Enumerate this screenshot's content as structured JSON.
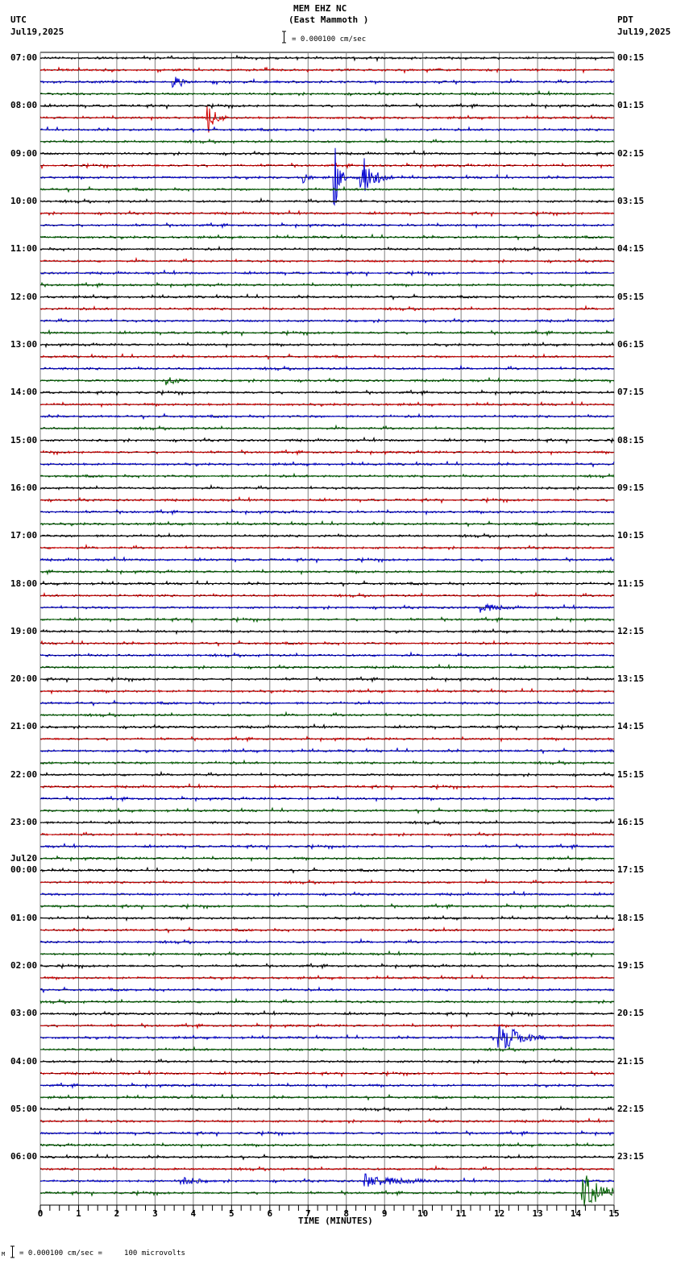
{
  "header": {
    "station": "MEM EHZ NC",
    "location": "(East Mammoth )",
    "scale_text": "= 0.000100 cm/sec",
    "left_tz": "UTC",
    "left_date": "Jul19,2025",
    "right_tz": "PDT",
    "right_date": "Jul19,2025"
  },
  "footer": {
    "scale_text": "= 0.000100 cm/sec =     100 microvolts",
    "x_axis_title": "TIME (MINUTES)"
  },
  "colors": {
    "trace_cycle": [
      "#000000",
      "#d40000",
      "#0000d0",
      "#006000"
    ],
    "grid": "#808080",
    "axis": "#000000"
  },
  "chart_data": {
    "type": "line",
    "title": "MEM EHZ NC (East Mammoth ) helicorder",
    "xlabel": "TIME (MINUTES)",
    "ylabel": "",
    "xlim": [
      0,
      15
    ],
    "x_ticks": [
      0,
      1,
      2,
      3,
      4,
      5,
      6,
      7,
      8,
      9,
      10,
      11,
      12,
      13,
      14,
      15
    ],
    "traces_per_hour": 4,
    "minutes_per_trace": 15,
    "num_traces": 96,
    "grid": true,
    "left_labels": [
      {
        "row": 0,
        "text": "07:00"
      },
      {
        "row": 4,
        "text": "08:00"
      },
      {
        "row": 8,
        "text": "09:00"
      },
      {
        "row": 12,
        "text": "10:00"
      },
      {
        "row": 16,
        "text": "11:00"
      },
      {
        "row": 20,
        "text": "12:00"
      },
      {
        "row": 24,
        "text": "13:00"
      },
      {
        "row": 28,
        "text": "14:00"
      },
      {
        "row": 32,
        "text": "15:00"
      },
      {
        "row": 36,
        "text": "16:00"
      },
      {
        "row": 40,
        "text": "17:00"
      },
      {
        "row": 44,
        "text": "18:00"
      },
      {
        "row": 48,
        "text": "19:00"
      },
      {
        "row": 52,
        "text": "20:00"
      },
      {
        "row": 56,
        "text": "21:00"
      },
      {
        "row": 60,
        "text": "22:00"
      },
      {
        "row": 64,
        "text": "23:00"
      },
      {
        "row": 68,
        "text": "00:00",
        "date": "Jul20"
      },
      {
        "row": 72,
        "text": "01:00"
      },
      {
        "row": 76,
        "text": "02:00"
      },
      {
        "row": 80,
        "text": "03:00"
      },
      {
        "row": 84,
        "text": "04:00"
      },
      {
        "row": 88,
        "text": "05:00"
      },
      {
        "row": 92,
        "text": "06:00"
      }
    ],
    "right_labels": [
      {
        "row": 0,
        "text": "00:15"
      },
      {
        "row": 4,
        "text": "01:15"
      },
      {
        "row": 8,
        "text": "02:15"
      },
      {
        "row": 12,
        "text": "03:15"
      },
      {
        "row": 16,
        "text": "04:15"
      },
      {
        "row": 20,
        "text": "05:15"
      },
      {
        "row": 24,
        "text": "06:15"
      },
      {
        "row": 28,
        "text": "07:15"
      },
      {
        "row": 32,
        "text": "08:15"
      },
      {
        "row": 36,
        "text": "09:15"
      },
      {
        "row": 40,
        "text": "10:15"
      },
      {
        "row": 44,
        "text": "11:15"
      },
      {
        "row": 48,
        "text": "12:15"
      },
      {
        "row": 52,
        "text": "13:15"
      },
      {
        "row": 56,
        "text": "14:15"
      },
      {
        "row": 60,
        "text": "15:15"
      },
      {
        "row": 64,
        "text": "16:15"
      },
      {
        "row": 68,
        "text": "17:15"
      },
      {
        "row": 72,
        "text": "18:15"
      },
      {
        "row": 76,
        "text": "19:15"
      },
      {
        "row": 80,
        "text": "20:15"
      },
      {
        "row": 84,
        "text": "21:15"
      },
      {
        "row": 88,
        "text": "22:15"
      },
      {
        "row": 92,
        "text": "23:15"
      }
    ],
    "events": [
      {
        "row": 2,
        "minute": 3.5,
        "amp": 6,
        "dur": 0.6
      },
      {
        "row": 5,
        "minute": 4.4,
        "amp": 18,
        "dur": 0.5
      },
      {
        "row": 10,
        "minute": 6.9,
        "amp": 6,
        "dur": 0.3
      },
      {
        "row": 10,
        "minute": 7.7,
        "amp": 40,
        "dur": 0.3
      },
      {
        "row": 10,
        "minute": 8.4,
        "amp": 30,
        "dur": 0.8
      },
      {
        "row": 27,
        "minute": 3.3,
        "amp": 6,
        "dur": 0.6
      },
      {
        "row": 46,
        "minute": 11.5,
        "amp": 6,
        "dur": 1.0
      },
      {
        "row": 82,
        "minute": 12.0,
        "amp": 22,
        "dur": 1.2
      },
      {
        "row": 94,
        "minute": 3.7,
        "amp": 7,
        "dur": 0.8
      },
      {
        "row": 94,
        "minute": 8.5,
        "amp": 8,
        "dur": 2.0
      },
      {
        "row": 95,
        "minute": 14.2,
        "amp": 26,
        "dur": 1.2
      }
    ]
  }
}
